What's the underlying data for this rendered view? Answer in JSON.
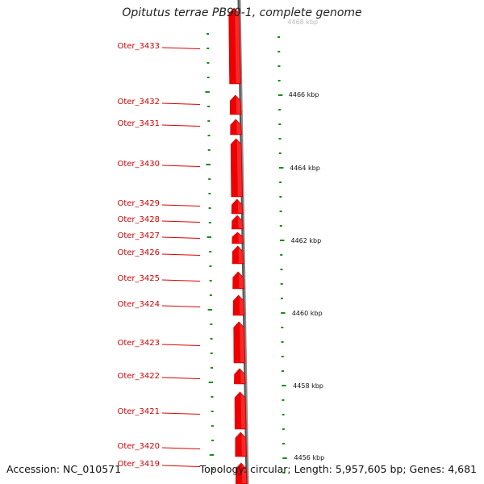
{
  "title": "Opitutus terrae PB90-1, complete genome",
  "footer": {
    "accession": "Accession: NC_010571",
    "summary": "Topology: circular; Length: 5,957,605 bp; Genes: 4,681"
  },
  "colors": {
    "gene": "#ee0000",
    "label": "#cc0000",
    "tick": "#1a8c1a",
    "backbone": "#8a8a8a"
  },
  "genes": [
    {
      "name": "Oter_3433"
    },
    {
      "name": "Oter_3432"
    },
    {
      "name": "Oter_3431"
    },
    {
      "name": "Oter_3430"
    },
    {
      "name": "Oter_3429"
    },
    {
      "name": "Oter_3428"
    },
    {
      "name": "Oter_3427"
    },
    {
      "name": "Oter_3426"
    },
    {
      "name": "Oter_3425"
    },
    {
      "name": "Oter_3424"
    },
    {
      "name": "Oter_3423"
    },
    {
      "name": "Oter_3422"
    },
    {
      "name": "Oter_3421"
    },
    {
      "name": "Oter_3420"
    },
    {
      "name": "Oter_3419"
    }
  ],
  "scale": [
    "4468 kbp",
    "4466 kbp",
    "4464 kbp",
    "4462 kbp",
    "4460 kbp",
    "4458 kbp",
    "4456 kbp"
  ]
}
